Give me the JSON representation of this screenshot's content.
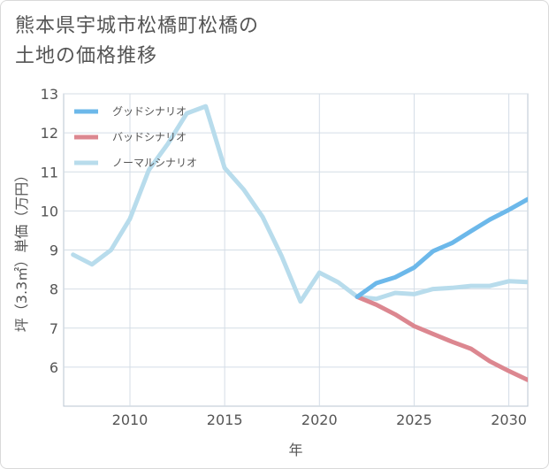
{
  "title_lines": [
    "熊本県宇城市松橋町松橋の",
    "土地の価格推移"
  ],
  "colors": {
    "good": "#6cb8ea",
    "bad": "#dc8790",
    "normal": "#b8dcec",
    "grid": "#d4dde6",
    "plot_border": "#b9c5d1"
  },
  "chart_data": {
    "type": "line",
    "title": "熊本県宇城市松橋町松橋の土地の価格推移",
    "xlabel": "年",
    "ylabel": "坪（3.3㎡）単価（万円）",
    "xlim": [
      2006.5,
      2031
    ],
    "ylim": [
      5,
      13
    ],
    "xticks": [
      2010,
      2015,
      2020,
      2025,
      2030
    ],
    "yticks": [
      6,
      7,
      8,
      9,
      10,
      11,
      12,
      13
    ],
    "grid": true,
    "legend_position": "top-left",
    "series": [
      {
        "name": "グッドシナリオ",
        "color_key": "good",
        "x": [
          2022,
          2023,
          2024,
          2025,
          2026,
          2027,
          2028,
          2029,
          2030,
          2031
        ],
        "y": [
          7.8,
          8.15,
          8.3,
          8.55,
          8.97,
          9.18,
          9.48,
          9.78,
          10.03,
          10.3
        ]
      },
      {
        "name": "バッドシナリオ",
        "color_key": "bad",
        "x": [
          2022,
          2023,
          2024,
          2025,
          2026,
          2027,
          2028,
          2029,
          2030,
          2031
        ],
        "y": [
          7.8,
          7.6,
          7.35,
          7.05,
          6.85,
          6.65,
          6.47,
          6.15,
          5.9,
          5.67
        ]
      },
      {
        "name": "ノーマルシナリオ",
        "color_key": "normal",
        "x": [
          2007,
          2008,
          2009,
          2010,
          2011,
          2012,
          2013,
          2014,
          2015,
          2016,
          2017,
          2018,
          2019,
          2020,
          2021,
          2022,
          2023,
          2024,
          2025,
          2026,
          2027,
          2028,
          2029,
          2030,
          2031
        ],
        "y": [
          8.88,
          8.63,
          9.0,
          9.8,
          11.05,
          11.72,
          12.5,
          12.68,
          11.1,
          10.55,
          9.85,
          8.85,
          7.68,
          8.42,
          8.17,
          7.8,
          7.75,
          7.9,
          7.87,
          8.0,
          8.03,
          8.08,
          8.08,
          8.2,
          8.18
        ]
      }
    ]
  }
}
